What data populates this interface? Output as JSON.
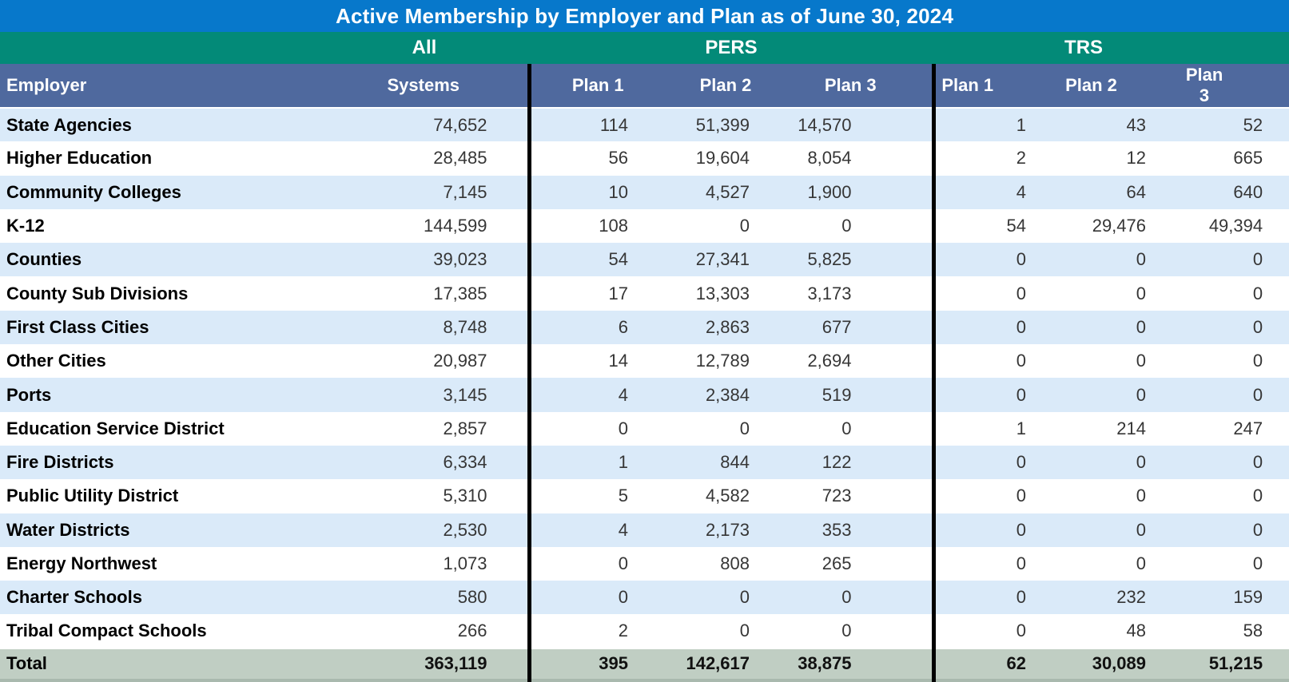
{
  "colors": {
    "title_bar": "#0778cb",
    "group_bar": "#038a78",
    "header_bar": "#4f699e",
    "stripe_row": "#daeaf9",
    "plain_row": "#ffffff",
    "total_row": "#c0cec3",
    "divider": "#000000",
    "header_text": "#ffffff",
    "number_text": "#363636"
  },
  "table": {
    "group_headers": {
      "all": "All",
      "pers": "PERS",
      "trs": "TRS"
    },
    "column_headers": {
      "employer": "Employer",
      "systems": "Systems",
      "pers": [
        "Plan 1",
        "Plan 2",
        "Plan 3"
      ],
      "trs": [
        "Plan 1",
        "Plan 2",
        "Plan 3"
      ]
    }
  },
  "chart_data": {
    "type": "table",
    "title": "Active Membership by Employer and Plan as of June 30, 2024",
    "column_groups": [
      {
        "label": "All",
        "span": 1
      },
      {
        "label": "PERS",
        "span": 3
      },
      {
        "label": "TRS",
        "span": 3
      }
    ],
    "columns": [
      "Employer",
      "All Systems",
      "PERS Plan 1",
      "PERS Plan 2",
      "PERS Plan 3",
      "TRS Plan 1",
      "TRS Plan 2",
      "TRS Plan 3"
    ],
    "rows": [
      [
        "State Agencies",
        74652,
        114,
        51399,
        14570,
        1,
        43,
        52
      ],
      [
        "Higher Education",
        28485,
        56,
        19604,
        8054,
        2,
        12,
        665
      ],
      [
        "Community Colleges",
        7145,
        10,
        4527,
        1900,
        4,
        64,
        640
      ],
      [
        "K-12",
        144599,
        108,
        0,
        0,
        54,
        29476,
        49394
      ],
      [
        "Counties",
        39023,
        54,
        27341,
        5825,
        0,
        0,
        0
      ],
      [
        "County Sub Divisions",
        17385,
        17,
        13303,
        3173,
        0,
        0,
        0
      ],
      [
        "First Class Cities",
        8748,
        6,
        2863,
        677,
        0,
        0,
        0
      ],
      [
        "Other Cities",
        20987,
        14,
        12789,
        2694,
        0,
        0,
        0
      ],
      [
        "Ports",
        3145,
        4,
        2384,
        519,
        0,
        0,
        0
      ],
      [
        "Education Service District",
        2857,
        0,
        0,
        0,
        1,
        214,
        247
      ],
      [
        "Fire Districts",
        6334,
        1,
        844,
        122,
        0,
        0,
        0
      ],
      [
        "Public Utility District",
        5310,
        5,
        4582,
        723,
        0,
        0,
        0
      ],
      [
        "Water Districts",
        2530,
        4,
        2173,
        353,
        0,
        0,
        0
      ],
      [
        "Energy Northwest",
        1073,
        0,
        808,
        265,
        0,
        0,
        0
      ],
      [
        "Charter Schools",
        580,
        0,
        0,
        0,
        0,
        232,
        159
      ],
      [
        "Tribal Compact Schools",
        266,
        2,
        0,
        0,
        0,
        48,
        58
      ]
    ],
    "total": [
      "Total",
      363119,
      395,
      142617,
      38875,
      62,
      30089,
      51215
    ]
  }
}
